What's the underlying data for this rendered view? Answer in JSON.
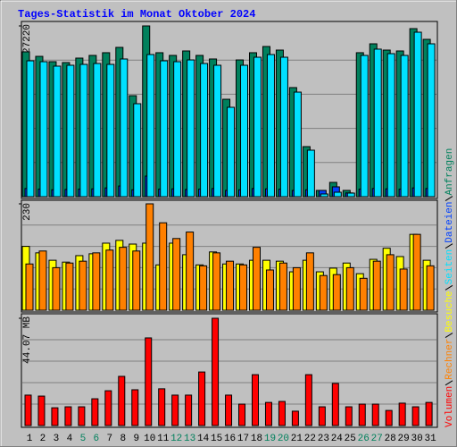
{
  "chart_data": [
    {
      "type": "bar",
      "title": "Tages-Statistik im Monat Oktober 2024",
      "ylim": [
        0,
        27220
      ],
      "yticks": [
        27220
      ],
      "series": [
        {
          "name": "Anfragen",
          "color": "#00805c",
          "values": [
            23090,
            22370,
            21520,
            21380,
            22090,
            22520,
            22950,
            23800,
            16100,
            27220,
            22950,
            22520,
            23230,
            22520,
            21950,
            15530,
            21800,
            22950,
            23940,
            23370,
            17390,
            7980,
            1000,
            2280,
            1000,
            22950,
            24370,
            23370,
            23230,
            26790,
            25080
          ]
        },
        {
          "name": "Dateien",
          "color": "#0040ff",
          "values": [
            1300,
            1200,
            1100,
            1150,
            1200,
            1250,
            1400,
            1700,
            1100,
            3280,
            1200,
            1250,
            1150,
            1200,
            1300,
            1000,
            1100,
            1300,
            1250,
            1200,
            1000,
            1100,
            1000,
            1570,
            600,
            1200,
            1300,
            1250,
            1200,
            1400,
            1300
          ]
        },
        {
          "name": "Seiten",
          "color": "#00e0ff",
          "values": [
            21660,
            21520,
            20810,
            20950,
            21090,
            21230,
            21090,
            21950,
            14820,
            22660,
            21660,
            21520,
            21800,
            21230,
            20950,
            14250,
            20950,
            22230,
            22660,
            22230,
            16670,
            7410,
            430,
            710,
            570,
            22520,
            23520,
            22800,
            22520,
            26220,
            24370
          ]
        }
      ]
    },
    {
      "type": "bar",
      "ylim": [
        0,
        230
      ],
      "yticks": [
        230
      ],
      "series": [
        {
          "name": "Besuche",
          "color": "#ffff00",
          "values": [
            138,
            124,
            108,
            104,
            118,
            122,
            145,
            151,
            143,
            145,
            98,
            145,
            120,
            98,
            126,
            100,
            100,
            108,
            108,
            106,
            83,
            108,
            83,
            91,
            102,
            79,
            110,
            134,
            116,
            164,
            108
          ]
        },
        {
          "name": "Rechner",
          "color": "#ff8000",
          "values": [
            100,
            128,
            92,
            102,
            106,
            124,
            130,
            136,
            128,
            230,
            189,
            155,
            169,
            96,
            124,
            106,
            98,
            136,
            87,
            102,
            92,
            124,
            75,
            77,
            92,
            69,
            106,
            120,
            89,
            164,
            96
          ]
        }
      ]
    },
    {
      "type": "bar",
      "ylim": [
        0,
        44.07
      ],
      "yticks": [
        {
          "value": 44.07,
          "label": "44.07 MB"
        }
      ],
      "categories": [
        "1",
        "2",
        "3",
        "4",
        "5",
        "6",
        "7",
        "8",
        "9",
        "10",
        "11",
        "12",
        "13",
        "14",
        "15",
        "16",
        "17",
        "18",
        "19",
        "20",
        "21",
        "22",
        "23",
        "24",
        "25",
        "26",
        "27",
        "28",
        "29",
        "30",
        "31"
      ],
      "category_colors": [
        "#000000",
        "#000000",
        "#000000",
        "#000000",
        "#00805c",
        "#00805c",
        "#000000",
        "#000000",
        "#000000",
        "#000000",
        "#000000",
        "#00805c",
        "#00805c",
        "#000000",
        "#000000",
        "#000000",
        "#000000",
        "#000000",
        "#00805c",
        "#00805c",
        "#000000",
        "#000000",
        "#000000",
        "#000000",
        "#000000",
        "#00805c",
        "#00805c",
        "#000000",
        "#000000",
        "#000000",
        "#000000"
      ],
      "series": [
        {
          "name": "Volumen",
          "color": "#ff0000",
          "values": [
            12.5,
            12.1,
            7.3,
            7.7,
            7.7,
            11.0,
            14.3,
            20.2,
            14.7,
            36.0,
            15.1,
            12.5,
            12.5,
            22.0,
            44.07,
            12.5,
            8.8,
            20.9,
            9.5,
            9.9,
            5.9,
            20.9,
            7.7,
            17.3,
            7.7,
            8.8,
            8.8,
            6.2,
            9.2,
            7.7,
            9.5
          ]
        }
      ]
    }
  ]
}
